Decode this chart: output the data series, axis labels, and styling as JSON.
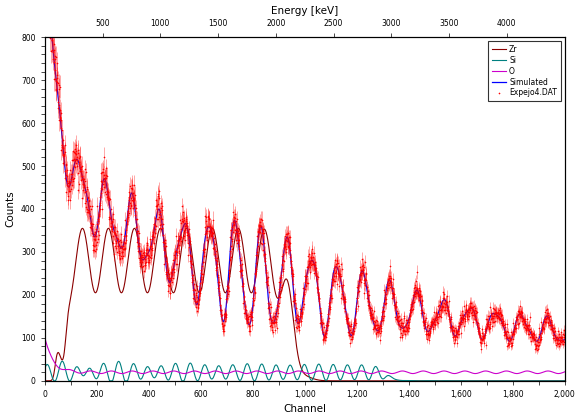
{
  "title_top": "Energy [keV]",
  "xlabel": "Channel",
  "ylabel": "Counts",
  "xlim": [
    0,
    2000
  ],
  "ylim": [
    0,
    800
  ],
  "top_xticks": [
    500,
    1000,
    1500,
    2000,
    2500,
    3000,
    3500,
    4000
  ],
  "legend_labels": [
    "Expejo4.DAT",
    "Simulated",
    "O",
    "Si",
    "Zr"
  ],
  "legend_colors": [
    "#ff0000",
    "#0000ff",
    "#cc00cc",
    "#008080",
    "#8b0000"
  ],
  "bg_color": "#ffffff",
  "noise_seed": 42
}
